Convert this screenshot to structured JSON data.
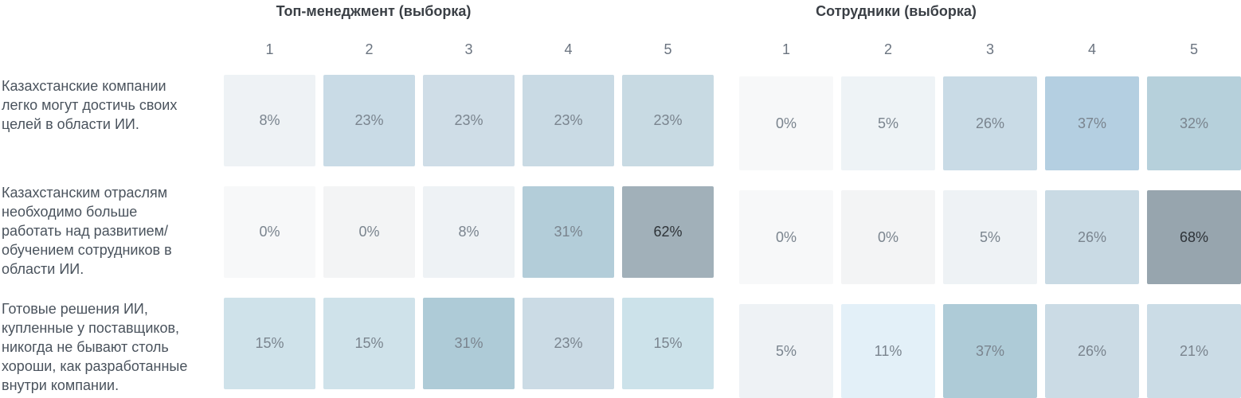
{
  "chart_data": [
    {
      "type": "heatmap",
      "title": "Топ-менеджмент (выборка)",
      "columns": [
        "1",
        "2",
        "3",
        "4",
        "5"
      ],
      "rows": [
        "Казахстанские компании легко могут достичь своих целей в области ИИ.",
        "Казахстанским отраслям необходимо больше работать над развитием/обучением сотрудников в области ИИ.",
        "Готовые решения ИИ, купленные у поставщиков, никогда не бывают столь хороши, как разработанные внутри компании."
      ],
      "values": [
        [
          8,
          23,
          23,
          23,
          23
        ],
        [
          0,
          0,
          8,
          31,
          62
        ],
        [
          15,
          15,
          31,
          23,
          15
        ]
      ],
      "value_labels": [
        [
          "8%",
          "23%",
          "23%",
          "23%",
          "23%"
        ],
        [
          "0%",
          "0%",
          "8%",
          "31%",
          "62%"
        ],
        [
          "15%",
          "15%",
          "31%",
          "23%",
          "15%"
        ]
      ],
      "unit": "%"
    },
    {
      "type": "heatmap",
      "title": "Сотрудники (выборка)",
      "columns": [
        "1",
        "2",
        "3",
        "4",
        "5"
      ],
      "rows": [
        "Казахстанские компании легко могут достичь своих целей в области ИИ.",
        "Казахстанским отраслям необходимо больше работать над развитием/обучением сотрудников в области ИИ.",
        "Готовые решения ИИ, купленные у поставщиков, никогда не бывают столь хороши, как разработанные внутри компании."
      ],
      "values": [
        [
          0,
          5,
          26,
          37,
          32
        ],
        [
          0,
          0,
          5,
          26,
          68
        ],
        [
          5,
          11,
          37,
          26,
          21
        ]
      ],
      "value_labels": [
        [
          "0%",
          "5%",
          "26%",
          "37%",
          "32%"
        ],
        [
          "0%",
          "0%",
          "5%",
          "26%",
          "68%"
        ],
        [
          "5%",
          "11%",
          "37%",
          "26%",
          "21%"
        ]
      ],
      "unit": "%"
    }
  ],
  "row_labels": [
    [
      "Казахстанские компании",
      "легко могут достичь своих",
      "целей в области ИИ."
    ],
    [
      "Казахстанским отраслям",
      "необходимо больше",
      "работать над развитием/",
      "обучением сотрудников в",
      "области ИИ."
    ],
    [
      "Готовые решения ИИ,",
      "купленные у поставщиков,",
      "никогда не бывают столь",
      "хороши, как разработанные",
      "внутри компании."
    ]
  ],
  "colors": {
    "row_colors": [
      [
        [
          "#eef2f5",
          "#c9dbe6",
          "#cfdde7",
          "#c9dae4",
          "#c8dae3"
        ],
        [
          "#f7f8f9",
          "#f3f4f5",
          "#eef2f5",
          "#b3cdd9",
          "#a1b0b9"
        ],
        [
          "#cfe2ea",
          "#cfe2ea",
          "#aecbd7",
          "#cbdbe5",
          "#cce2ea"
        ]
      ],
      [
        [
          "#f7f8f9",
          "#eef3f6",
          "#c9dbe6",
          "#b4cfe1",
          "#b6d0db"
        ],
        [
          "#f7f8f9",
          "#f3f4f5",
          "#eef2f5",
          "#c9dae4",
          "#97a5ae"
        ],
        [
          "#eef2f5",
          "#e3f0f8",
          "#aecbd7",
          "#cbdbe5",
          "#cbdce6"
        ]
      ]
    ],
    "text_light": "#7a848e",
    "text_dark": "#2e3338"
  }
}
